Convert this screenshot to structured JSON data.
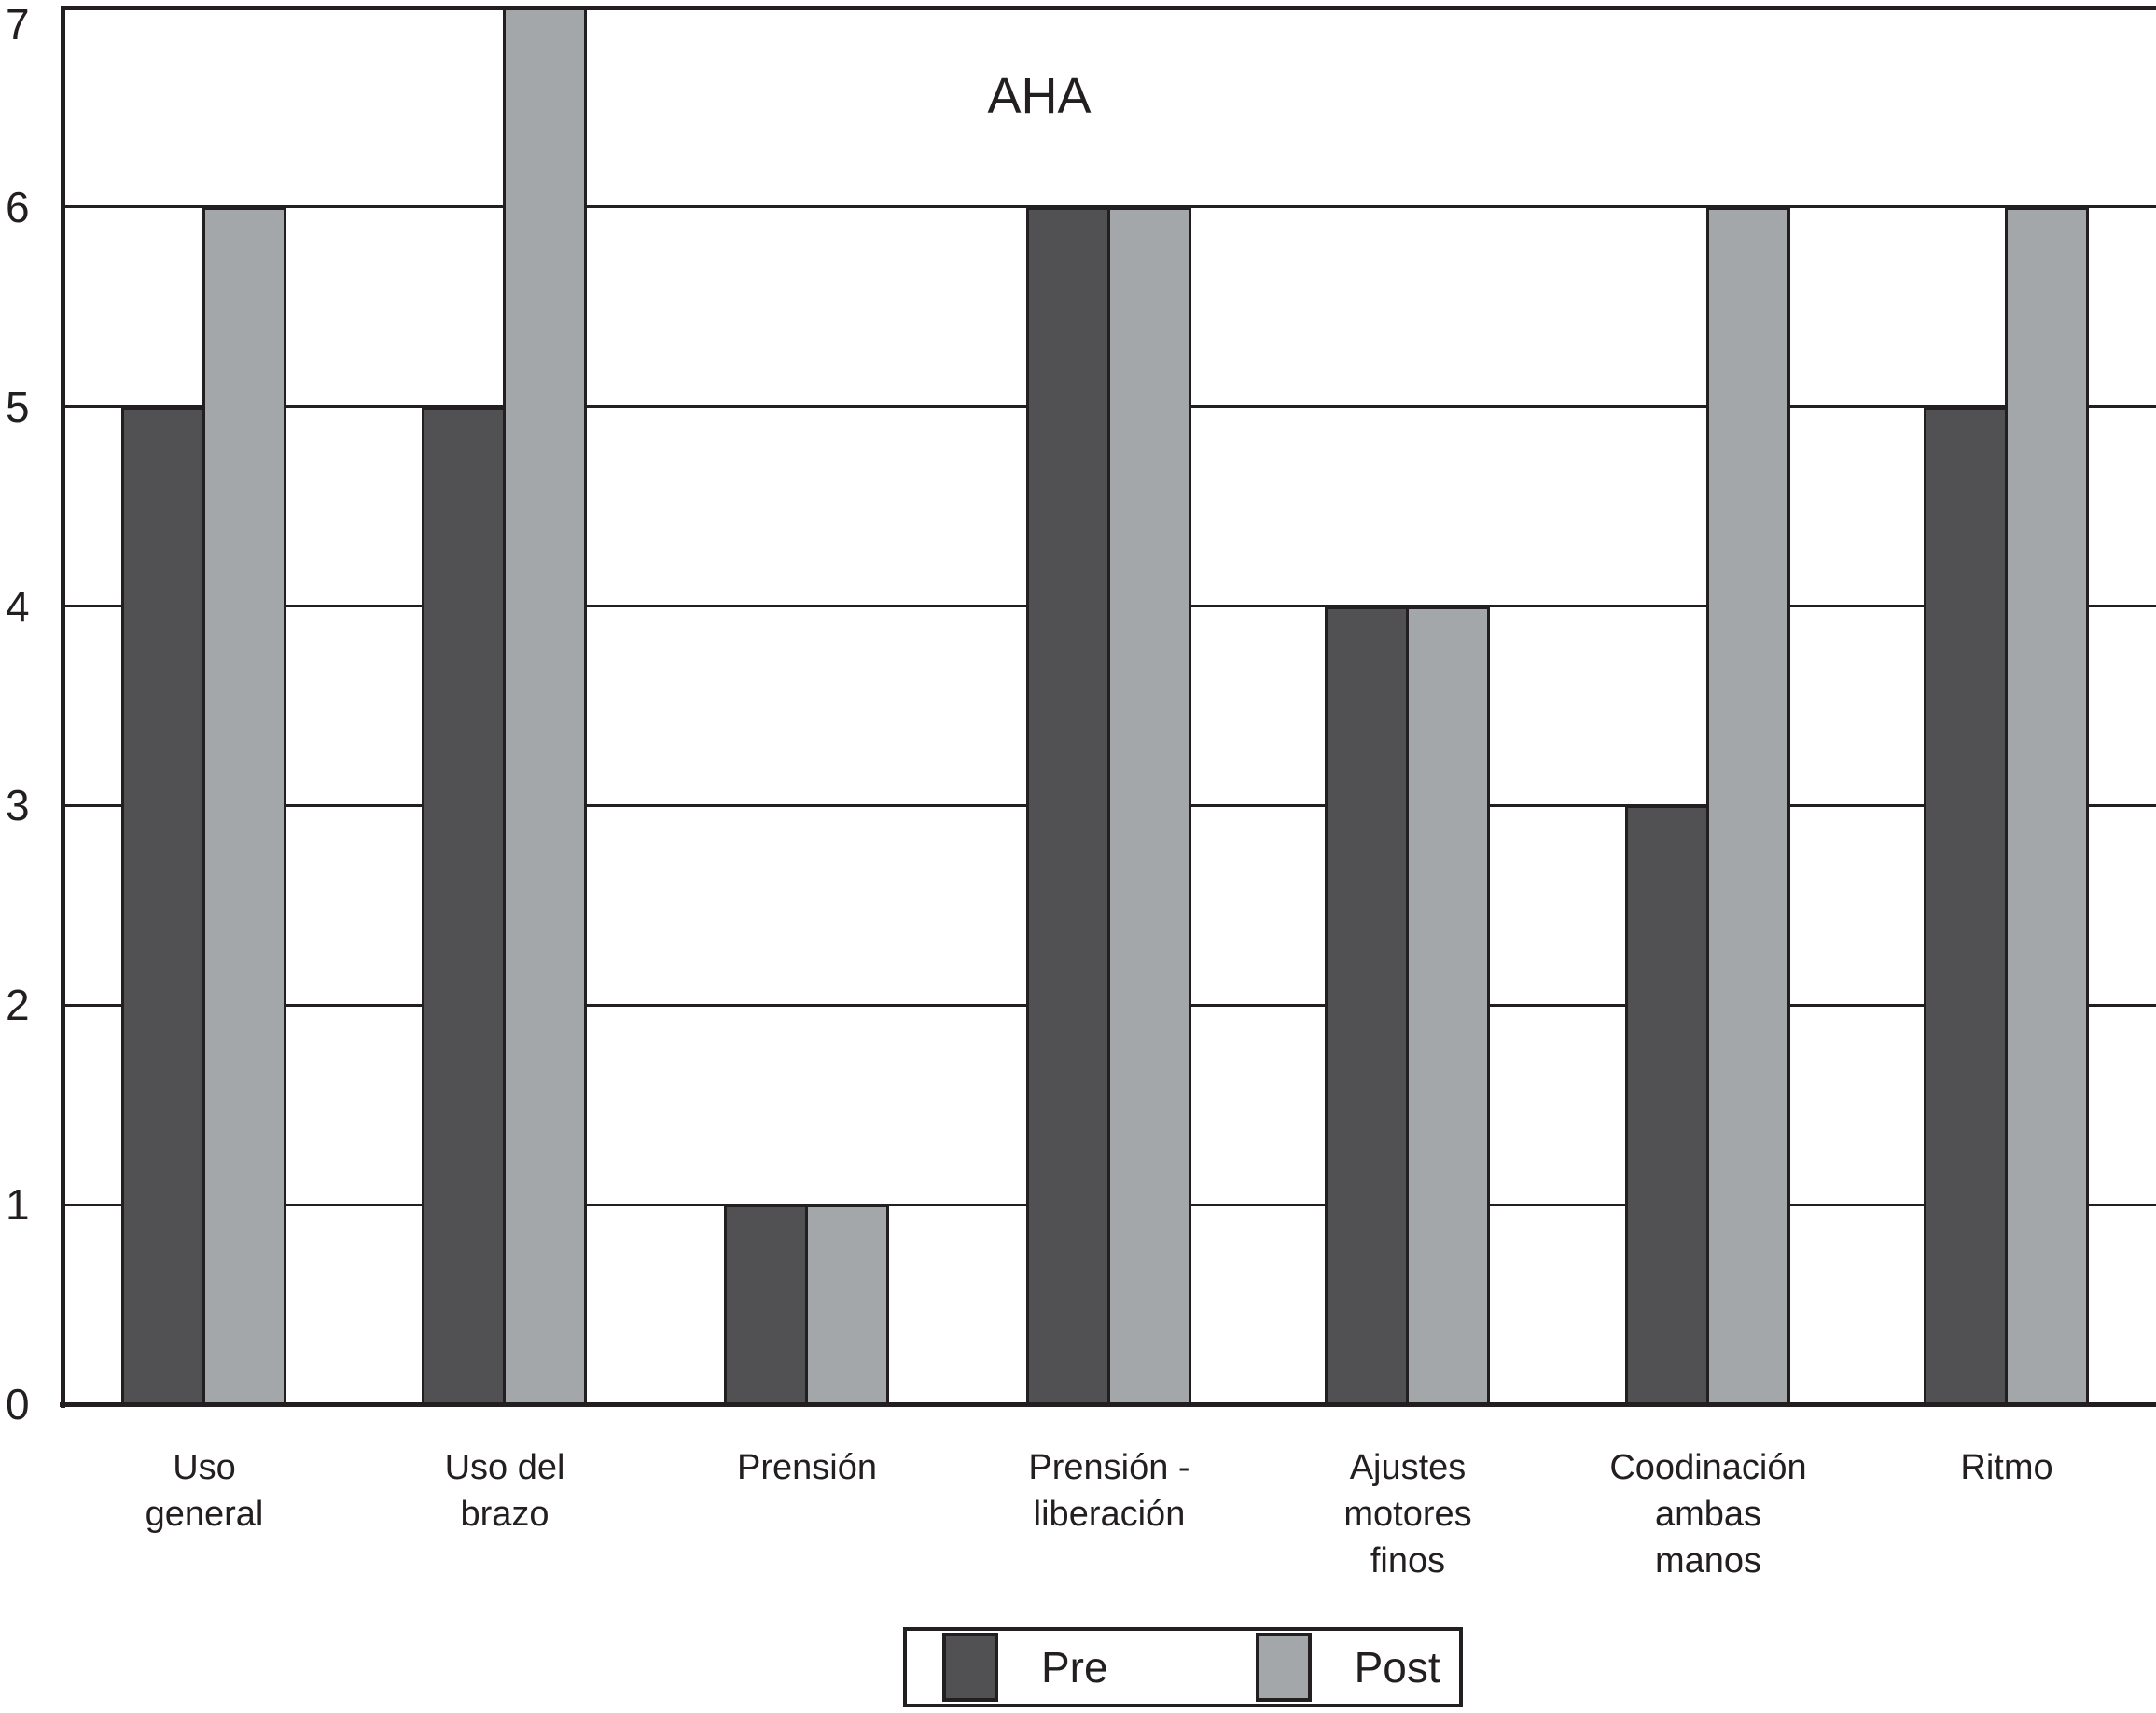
{
  "title": "AHA",
  "colors": {
    "bar_pre": "#515154",
    "bar_post": "#a4a7aa",
    "line": "#231f20",
    "background": "#ffffff"
  },
  "chart_data": {
    "type": "bar",
    "title": "AHA",
    "categories": [
      "Uso\ngeneral",
      "Uso del\nbrazo",
      "Prensión",
      "Prensión -\nliberación",
      "Ajustes\nmotores\nfinos",
      "Coodinación\nambas\nmanos",
      "Ritmo"
    ],
    "series": [
      {
        "name": "Pre",
        "color": "#515154",
        "values": [
          5,
          5,
          1,
          6,
          4,
          3,
          5
        ]
      },
      {
        "name": "Post",
        "color": "#a4a7aa",
        "values": [
          6,
          7,
          1,
          6,
          4,
          6,
          6
        ]
      }
    ],
    "xlabel": "",
    "ylabel": "",
    "ylim": [
      0,
      7
    ],
    "yticks": [
      0,
      1,
      2,
      3,
      4,
      5,
      6,
      7
    ],
    "grid": "horizontal",
    "legend_position": "bottom"
  },
  "legend": {
    "items": [
      {
        "label": "Pre"
      },
      {
        "label": "Post"
      }
    ]
  }
}
